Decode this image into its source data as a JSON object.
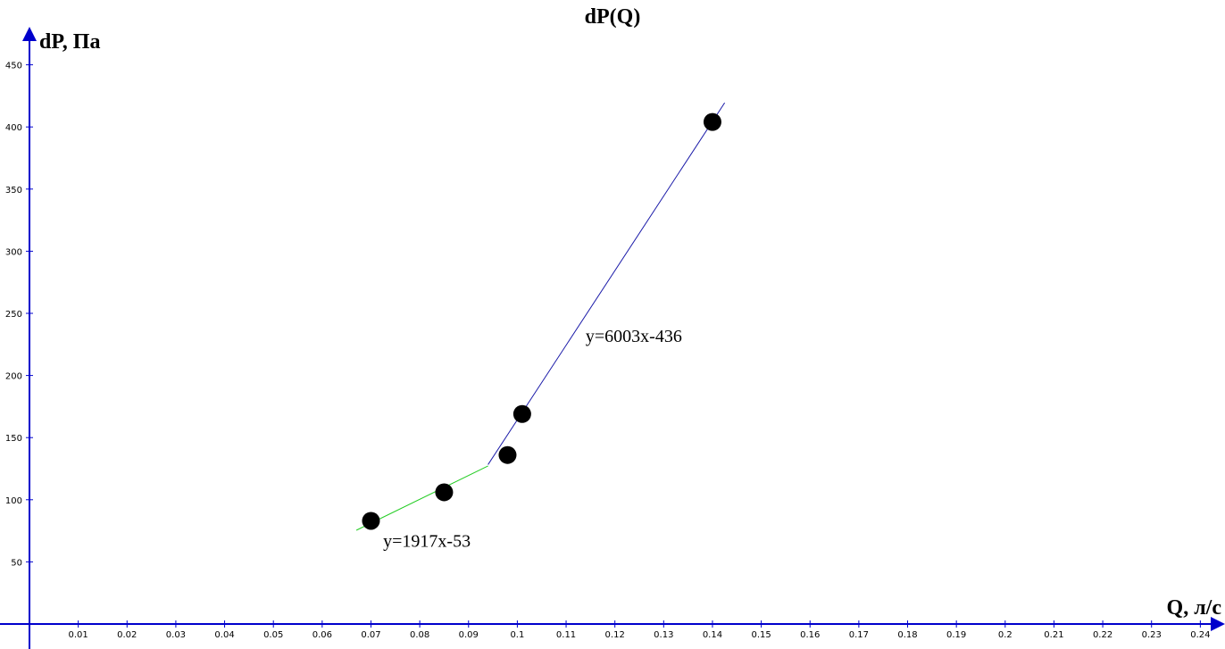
{
  "chart_data": {
    "type": "scatter",
    "title": "dP(Q)",
    "xlabel": "Q, л/с",
    "ylabel": "dP, Па",
    "xlim": [
      0,
      0.245
    ],
    "ylim": [
      0,
      460
    ],
    "x_ticks": [
      0.01,
      0.02,
      0.03,
      0.04,
      0.05,
      0.06,
      0.07,
      0.08,
      0.09,
      0.1,
      0.11,
      0.12,
      0.13,
      0.14,
      0.15,
      0.16,
      0.17,
      0.18,
      0.19,
      0.2,
      0.21,
      0.22,
      0.23,
      0.24
    ],
    "y_ticks": [
      50,
      100,
      150,
      200,
      250,
      300,
      350,
      400,
      450
    ],
    "points": [
      {
        "x": 0.07,
        "y": 83
      },
      {
        "x": 0.085,
        "y": 106
      },
      {
        "x": 0.098,
        "y": 136
      },
      {
        "x": 0.101,
        "y": 169
      },
      {
        "x": 0.14,
        "y": 404
      }
    ],
    "fits": [
      {
        "equation": "y=1917x-53",
        "x_range": [
          0.067,
          0.094
        ],
        "slope": 1917,
        "intercept": -53,
        "color": "#22cc22"
      },
      {
        "equation": "y=6003x-436",
        "x_range": [
          0.094,
          0.1425
        ],
        "slope": 6003,
        "intercept": -436,
        "color": "#1a1aa8"
      }
    ],
    "axis_color": "#0000cc",
    "grid": false
  }
}
